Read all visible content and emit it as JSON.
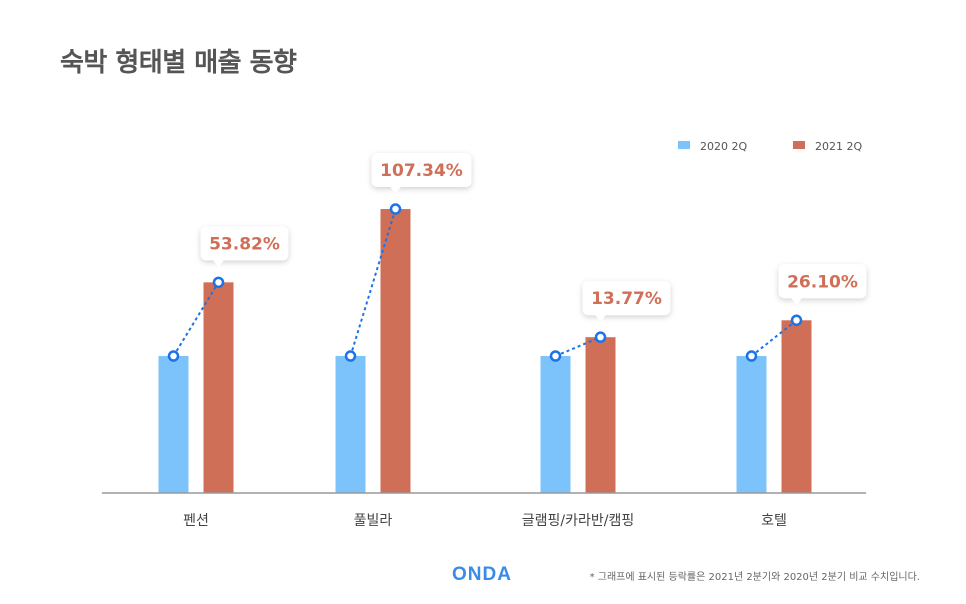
{
  "title": "숙박 형태별 매출 동향",
  "brand": "ONDA",
  "footnote": "* 그래프에 표시된 등락률은 2021년 2분기와 2020년 2분기 비교 수치입니다.",
  "colors": {
    "series_2020": "#7cc3fb",
    "series_2021": "#d06f57",
    "trend_line": "#1a73e8",
    "label_text": "#d06f57",
    "axis": "#999999"
  },
  "chart_data": {
    "type": "bar",
    "title": "숙박 형태별 매출 동향",
    "categories": [
      "펜션",
      "풀빌라",
      "글램핑/카라반/캠핑",
      "호텔"
    ],
    "series": [
      {
        "name": "2020 2Q",
        "values": [
          100,
          100,
          100,
          100
        ]
      },
      {
        "name": "2021 2Q",
        "values": [
          153.82,
          207.34,
          113.77,
          126.1
        ]
      }
    ],
    "annotations": [
      "53.82%",
      "107.34%",
      "13.77%",
      "26.10%"
    ],
    "ylim": [
      0,
      230
    ],
    "legend": "top-right",
    "grid": false
  }
}
